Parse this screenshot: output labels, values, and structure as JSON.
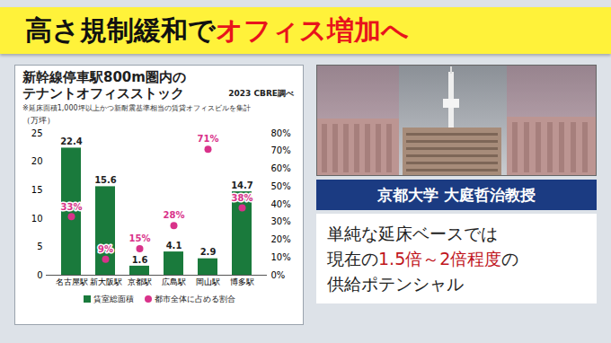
{
  "header": {
    "title": [
      {
        "text": "高さ規制緩和で",
        "color": "#111111"
      },
      {
        "text": "オフィス増加へ",
        "color": "#e8141c"
      }
    ]
  },
  "chart_data": {
    "type": "bar",
    "title": "新幹線停車駅800m圏内の\nテナントオフィスストック",
    "subtitle": "2023 CBRE調べ",
    "note": "※延床面積1,000坪以上かつ新耐震基準相当の賃貸オフィスビルを集計",
    "ylabel": "（万坪）",
    "categories": [
      "名古屋駅",
      "新大阪駅",
      "京都駅",
      "広島駅",
      "岡山駅",
      "博多駅"
    ],
    "series": [
      {
        "name": "賃室総面積",
        "type": "bar",
        "color": "#1a7a3c",
        "values": [
          22.4,
          15.6,
          1.6,
          4.1,
          2.9,
          14.7
        ]
      },
      {
        "name": "都市全体に占める割合",
        "type": "scatter",
        "marker": "circle",
        "axis": "y2",
        "color": "#d9328a",
        "values": [
          33,
          9,
          15,
          28,
          71,
          38
        ],
        "value_labels": [
          "33%",
          "9%",
          "15%",
          "28%",
          "71%",
          "38%"
        ]
      }
    ],
    "ylim": [
      0,
      25
    ],
    "yticks": [
      0,
      5,
      10,
      15,
      20,
      25
    ],
    "y2lim": [
      0,
      80
    ],
    "y2ticks": [
      {
        "value": 0,
        "label": "0%"
      },
      {
        "value": 10,
        "label": "10%"
      },
      {
        "value": 20,
        "label": "20%"
      },
      {
        "value": 30,
        "label": "30%"
      },
      {
        "value": 40,
        "label": "40%"
      },
      {
        "value": 50,
        "label": "50%"
      },
      {
        "value": 60,
        "label": "60%"
      },
      {
        "value": 70,
        "label": "70%"
      },
      {
        "value": 80,
        "label": "80%"
      }
    ],
    "grid": false,
    "legend": "bottom",
    "data_labels": true
  },
  "expert": {
    "caption": "京都大学 大庭哲治教授",
    "quote": [
      [
        {
          "text": "単純な延床ベースでは"
        }
      ],
      [
        {
          "text": "現在の"
        },
        {
          "text": "1.5倍～2倍程度",
          "color": "#c0141c"
        },
        {
          "text": "の"
        }
      ],
      [
        {
          "text": "供給ポテンシャル"
        }
      ]
    ]
  }
}
